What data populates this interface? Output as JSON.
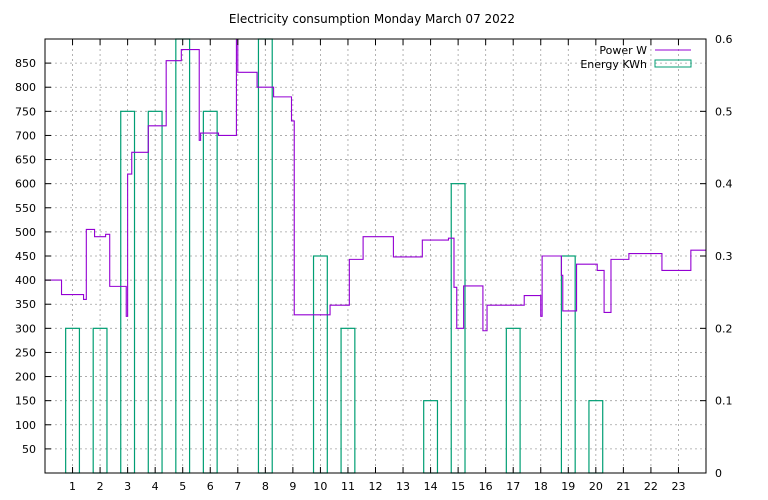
{
  "chart_data": {
    "type": "line",
    "title": "Electricity consumption Monday March 07 2022",
    "xlabel": "",
    "ylabel": "",
    "xlim": [
      0,
      24
    ],
    "ylim": [
      0,
      900
    ],
    "y2lim": [
      0,
      0.6
    ],
    "grid": true,
    "legend_position": "top-right",
    "x_ticks": [
      1,
      2,
      3,
      4,
      5,
      6,
      7,
      8,
      9,
      10,
      11,
      12,
      13,
      14,
      15,
      16,
      17,
      18,
      19,
      20,
      21,
      22,
      23
    ],
    "y_ticks": [
      50,
      100,
      150,
      200,
      250,
      300,
      350,
      400,
      450,
      500,
      550,
      600,
      650,
      700,
      750,
      800,
      850
    ],
    "y2_ticks": [
      0,
      0.1,
      0.2,
      0.3,
      0.4,
      0.5,
      0.6
    ],
    "series": [
      {
        "name": "Power W",
        "color": "#9400d3",
        "axis": "y",
        "style": "steps",
        "points": [
          [
            0,
            400
          ],
          [
            0.6,
            370
          ],
          [
            1.4,
            360
          ],
          [
            1.5,
            505
          ],
          [
            1.8,
            490
          ],
          [
            2.2,
            495
          ],
          [
            2.35,
            387
          ],
          [
            2.95,
            325
          ],
          [
            3.0,
            620
          ],
          [
            3.15,
            665
          ],
          [
            3.75,
            720
          ],
          [
            4.4,
            855
          ],
          [
            4.95,
            878
          ],
          [
            5.6,
            690
          ],
          [
            5.65,
            705
          ],
          [
            6.3,
            700
          ],
          [
            6.95,
            910
          ],
          [
            7.0,
            831
          ],
          [
            7.7,
            800
          ],
          [
            8.3,
            780
          ],
          [
            8.95,
            730
          ],
          [
            9.05,
            328
          ],
          [
            10.35,
            348
          ],
          [
            11.05,
            443
          ],
          [
            11.55,
            490
          ],
          [
            12.65,
            448
          ],
          [
            13.7,
            483
          ],
          [
            14.65,
            487
          ],
          [
            14.85,
            385
          ],
          [
            14.95,
            300
          ],
          [
            15.2,
            388
          ],
          [
            15.9,
            295
          ],
          [
            16.05,
            348
          ],
          [
            17.4,
            368
          ],
          [
            18.0,
            325
          ],
          [
            18.05,
            450
          ],
          [
            18.75,
            410
          ],
          [
            18.8,
            336
          ],
          [
            19.3,
            433
          ],
          [
            20.05,
            420
          ],
          [
            20.3,
            333
          ],
          [
            20.55,
            443
          ],
          [
            21.2,
            455
          ],
          [
            22.4,
            420
          ],
          [
            23.45,
            462
          ],
          [
            24.0,
            462
          ]
        ]
      },
      {
        "name": "Energy KWh",
        "color": "#009e73",
        "axis": "y2",
        "style": "boxes",
        "categories": [
          1,
          2,
          3,
          4,
          5,
          6,
          7,
          8,
          9,
          10,
          11,
          12,
          13,
          14,
          15,
          16,
          17,
          18,
          19,
          20,
          21,
          22,
          23
        ],
        "values": [
          0.2,
          0.2,
          0.5,
          0.5,
          0.6,
          0.5,
          0,
          0.6,
          0,
          0.3,
          0.2,
          0,
          0,
          0.1,
          0.4,
          0,
          0.2,
          0,
          0.3,
          0.1,
          0,
          0,
          0
        ]
      }
    ]
  }
}
